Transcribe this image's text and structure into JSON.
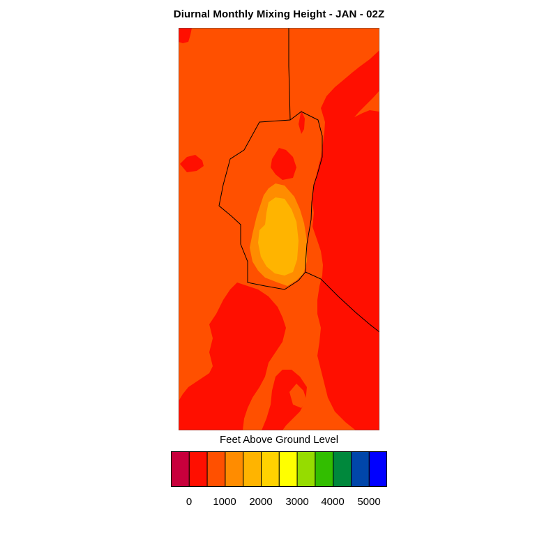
{
  "title": "Diurnal Monthly Mixing Height - JAN - 02Z",
  "legend": {
    "title": "Feet Above Ground Level",
    "colors": [
      "#c8003c",
      "#ff0f00",
      "#ff5000",
      "#ff8c00",
      "#ffb400",
      "#ffd200",
      "#ffff00",
      "#96dc00",
      "#32be00",
      "#00883c",
      "#0046aa",
      "#0000ff"
    ],
    "tick_labels": [
      "0",
      "1000",
      "2000",
      "3000",
      "4000",
      "5000"
    ]
  },
  "map": {
    "region_colors": {
      "level_0_500": "#ff0f00",
      "level_500_1000": "#ff5000",
      "level_1000_1500": "#ff8c00",
      "level_1500_2000": "#ffb400"
    },
    "boundary_color": "#000000"
  }
}
